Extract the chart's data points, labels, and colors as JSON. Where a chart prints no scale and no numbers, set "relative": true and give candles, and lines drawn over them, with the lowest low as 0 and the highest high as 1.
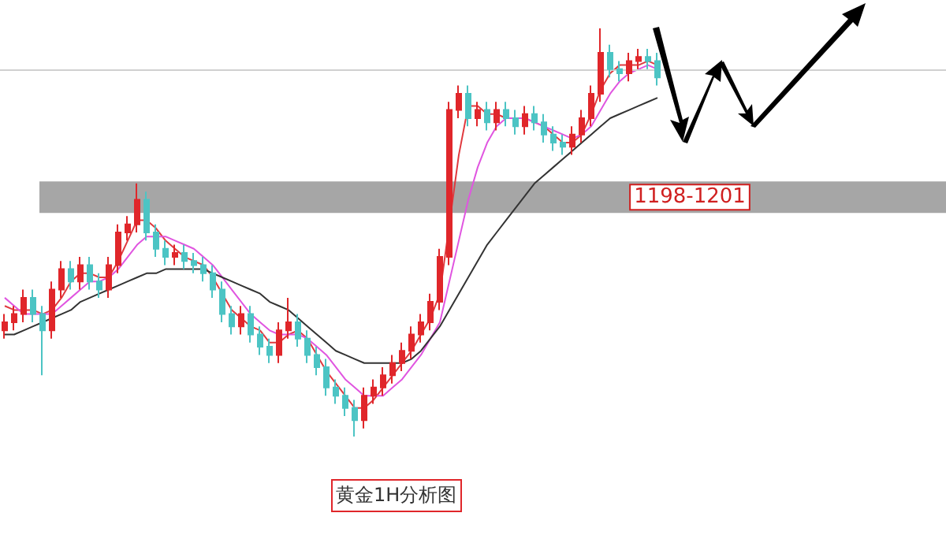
{
  "chart_data": {
    "type": "candlestick",
    "relative": true,
    "colors": [
      "#e0262a",
      "#e0262a",
      "#e0262a",
      "#4cc4c4",
      "#4cc4c4",
      "#e0262a",
      "#e0262a",
      "#4cc4c4",
      "#e0262a",
      "#4cc4c4",
      "#4cc4c4",
      "#e0262a",
      "#e0262a",
      "#e0262a",
      "#e0262a",
      "#4cc4c4",
      "#4cc4c4",
      "#4cc4c4",
      "#e0262a",
      "#4cc4c4",
      "#4cc4c4",
      "#4cc4c4",
      "#4cc4c4",
      "#4cc4c4",
      "#4cc4c4",
      "#e0262a",
      "#4cc4c4",
      "#4cc4c4",
      "#4cc4c4",
      "#e0262a",
      "#e0262a",
      "#4cc4c4",
      "#4cc4c4",
      "#4cc4c4",
      "#4cc4c4",
      "#4cc4c4",
      "#4cc4c4",
      "#4cc4c4",
      "#e0262a",
      "#e0262a",
      "#e0262a",
      "#e0262a",
      "#e0262a",
      "#e0262a",
      "#e0262a",
      "#e0262a",
      "#e0262a",
      "#e0262a",
      "#e0262a",
      "#4cc4c4",
      "#e0262a",
      "#4cc4c4",
      "#e0262a",
      "#4cc4c4",
      "#4cc4c4",
      "#e0262a",
      "#4cc4c4",
      "#4cc4c4",
      "#4cc4c4",
      "#4cc4c4",
      "#e0262a",
      "#e0262a",
      "#e0262a",
      "#e0262a",
      "#4cc4c4",
      "#4cc4c4",
      "#e0262a",
      "#e0262a",
      "#4cc4c4",
      "#4cc4c4"
    ],
    "categories": [
      null,
      null,
      null,
      null,
      null,
      null,
      null,
      null,
      null,
      null,
      null,
      null,
      null,
      null,
      null,
      null,
      null,
      null,
      null,
      null,
      null,
      null,
      null,
      null,
      null,
      null,
      null,
      null,
      null,
      null,
      null,
      null,
      null,
      null,
      null,
      null,
      null,
      null,
      null,
      null,
      null,
      null,
      null,
      null,
      null,
      null,
      null,
      null,
      null,
      null,
      null,
      null,
      null,
      null,
      null,
      null,
      null,
      null,
      null,
      null,
      null,
      null,
      null,
      null,
      null,
      null,
      null,
      null,
      null,
      null
    ],
    "ohlc": [
      [
        0.26,
        0.3,
        0.24,
        0.28
      ],
      [
        0.28,
        0.32,
        0.26,
        0.3
      ],
      [
        0.3,
        0.36,
        0.28,
        0.34
      ],
      [
        0.34,
        0.36,
        0.28,
        0.3
      ],
      [
        0.3,
        0.32,
        0.15,
        0.26
      ],
      [
        0.26,
        0.38,
        0.24,
        0.36
      ],
      [
        0.36,
        0.43,
        0.34,
        0.41
      ],
      [
        0.41,
        0.43,
        0.36,
        0.38
      ],
      [
        0.38,
        0.44,
        0.36,
        0.42
      ],
      [
        0.42,
        0.44,
        0.36,
        0.38
      ],
      [
        0.38,
        0.4,
        0.34,
        0.36
      ],
      [
        0.36,
        0.44,
        0.34,
        0.42
      ],
      [
        0.42,
        0.52,
        0.4,
        0.5
      ],
      [
        0.5,
        0.54,
        0.48,
        0.52
      ],
      [
        0.52,
        0.62,
        0.5,
        0.58
      ],
      [
        0.58,
        0.6,
        0.48,
        0.5
      ],
      [
        0.5,
        0.52,
        0.44,
        0.46
      ],
      [
        0.46,
        0.48,
        0.42,
        0.44
      ],
      [
        0.44,
        0.47,
        0.42,
        0.45
      ],
      [
        0.45,
        0.47,
        0.41,
        0.43
      ],
      [
        0.43,
        0.45,
        0.4,
        0.42
      ],
      [
        0.42,
        0.44,
        0.38,
        0.4
      ],
      [
        0.4,
        0.42,
        0.34,
        0.36
      ],
      [
        0.36,
        0.38,
        0.28,
        0.3
      ],
      [
        0.3,
        0.32,
        0.25,
        0.27
      ],
      [
        0.27,
        0.32,
        0.25,
        0.3
      ],
      [
        0.3,
        0.32,
        0.23,
        0.25
      ],
      [
        0.25,
        0.27,
        0.2,
        0.22
      ],
      [
        0.22,
        0.24,
        0.18,
        0.2
      ],
      [
        0.2,
        0.28,
        0.18,
        0.26
      ],
      [
        0.26,
        0.34,
        0.24,
        0.28
      ],
      [
        0.28,
        0.3,
        0.22,
        0.24
      ],
      [
        0.24,
        0.26,
        0.18,
        0.2
      ],
      [
        0.2,
        0.22,
        0.15,
        0.17
      ],
      [
        0.17,
        0.19,
        0.1,
        0.12
      ],
      [
        0.12,
        0.14,
        0.08,
        0.1
      ],
      [
        0.1,
        0.12,
        0.05,
        0.07
      ],
      [
        0.07,
        0.09,
        0,
        0.04
      ],
      [
        0.04,
        0.12,
        0.02,
        0.1
      ],
      [
        0.1,
        0.14,
        0.08,
        0.12
      ],
      [
        0.12,
        0.17,
        0.1,
        0.15
      ],
      [
        0.15,
        0.2,
        0.13,
        0.18
      ],
      [
        0.18,
        0.23,
        0.16,
        0.21
      ],
      [
        0.21,
        0.27,
        0.19,
        0.25
      ],
      [
        0.25,
        0.3,
        0.23,
        0.28
      ],
      [
        0.28,
        0.35,
        0.26,
        0.33
      ],
      [
        0.33,
        0.46,
        0.31,
        0.44
      ],
      [
        0.44,
        0.82,
        0.42,
        0.8
      ],
      [
        0.8,
        0.86,
        0.78,
        0.84
      ],
      [
        0.84,
        0.86,
        0.76,
        0.78
      ],
      [
        0.78,
        0.82,
        0.76,
        0.8
      ],
      [
        0.8,
        0.82,
        0.75,
        0.77
      ],
      [
        0.77,
        0.82,
        0.75,
        0.8
      ],
      [
        0.8,
        0.82,
        0.76,
        0.78
      ],
      [
        0.78,
        0.8,
        0.74,
        0.76
      ],
      [
        0.76,
        0.81,
        0.74,
        0.79
      ],
      [
        0.79,
        0.81,
        0.75,
        0.77
      ],
      [
        0.77,
        0.79,
        0.72,
        0.74
      ],
      [
        0.74,
        0.76,
        0.7,
        0.72
      ],
      [
        0.72,
        0.74,
        0.69,
        0.71
      ],
      [
        0.71,
        0.76,
        0.69,
        0.74
      ],
      [
        0.74,
        0.8,
        0.72,
        0.78
      ],
      [
        0.78,
        0.86,
        0.76,
        0.84
      ],
      [
        0.84,
        1,
        0.82,
        0.94
      ],
      [
        0.94,
        0.96,
        0.88,
        0.9
      ],
      [
        0.9,
        0.92,
        0.87,
        0.89
      ],
      [
        0.89,
        0.94,
        0.87,
        0.92
      ],
      [
        0.92,
        0.95,
        0.9,
        0.93
      ],
      [
        0.93,
        0.95,
        0.9,
        0.92
      ],
      [
        0.92,
        0.94,
        0.86,
        0.88
      ]
    ],
    "series": [
      {
        "type": "line",
        "color": "#e0393e",
        "values": [
          0.32,
          0.31,
          0.31,
          0.31,
          0.3,
          0.31,
          0.34,
          0.38,
          0.4,
          0.4,
          0.39,
          0.39,
          0.43,
          0.48,
          0.53,
          0.53,
          0.51,
          0.48,
          0.46,
          0.44,
          0.43,
          0.42,
          0.39,
          0.35,
          0.31,
          0.29,
          0.27,
          0.26,
          0.23,
          0.23,
          0.25,
          0.26,
          0.24,
          0.2,
          0.16,
          0.13,
          0.1,
          0.07,
          0.07,
          0.09,
          0.12,
          0.15,
          0.18,
          0.21,
          0.25,
          0.29,
          0.35,
          0.52,
          0.69,
          0.81,
          0.81,
          0.79,
          0.79,
          0.78,
          0.78,
          0.78,
          0.77,
          0.76,
          0.74,
          0.72,
          0.72,
          0.74,
          0.79,
          0.85,
          0.89,
          0.91,
          0.91,
          0.91,
          0.92,
          0.91
        ]
      },
      {
        "type": "line",
        "color": "#e055e0",
        "values": [
          0.34,
          0.32,
          0.3,
          0.3,
          0.3,
          0.3,
          0.32,
          0.34,
          0.36,
          0.38,
          0.38,
          0.39,
          0.41,
          0.44,
          0.47,
          0.49,
          0.49,
          0.49,
          0.48,
          0.47,
          0.46,
          0.44,
          0.42,
          0.39,
          0.36,
          0.33,
          0.3,
          0.28,
          0.26,
          0.25,
          0.25,
          0.25,
          0.24,
          0.22,
          0.2,
          0.17,
          0.14,
          0.12,
          0.1,
          0.1,
          0.1,
          0.12,
          0.14,
          0.17,
          0.2,
          0.24,
          0.28,
          0.38,
          0.48,
          0.58,
          0.66,
          0.72,
          0.76,
          0.78,
          0.78,
          0.78,
          0.77,
          0.76,
          0.75,
          0.74,
          0.73,
          0.74,
          0.76,
          0.8,
          0.84,
          0.87,
          0.89,
          0.9,
          0.91,
          0.9
        ]
      },
      {
        "type": "line",
        "color": "#333333",
        "values": [
          0.25,
          0.25,
          0.26,
          0.27,
          0.28,
          0.29,
          0.3,
          0.31,
          0.33,
          0.34,
          0.35,
          0.36,
          0.37,
          0.38,
          0.39,
          0.4,
          0.4,
          0.41,
          0.41,
          0.41,
          0.41,
          0.41,
          0.4,
          0.39,
          0.38,
          0.37,
          0.36,
          0.35,
          0.33,
          0.32,
          0.31,
          0.29,
          0.27,
          0.25,
          0.23,
          0.21,
          0.2,
          0.19,
          0.18,
          0.18,
          0.18,
          0.18,
          0.18,
          0.19,
          0.21,
          0.24,
          0.27,
          0.31,
          0.35,
          0.39,
          0.43,
          0.47,
          0.5,
          0.53,
          0.56,
          0.59,
          0.62,
          0.64,
          0.66,
          0.68,
          0.7,
          0.72,
          0.74,
          0.76,
          0.78,
          0.79,
          0.8,
          0.81,
          0.82,
          0.83
        ]
      }
    ],
    "bands": [
      {
        "axis": "y",
        "from": 0.548,
        "to": 0.625,
        "label": "1198-1201",
        "color": "#a6a6a6"
      }
    ],
    "ref_lines": [
      {
        "axis": "y",
        "value": 0.896,
        "color": "#d0d0d0"
      }
    ],
    "annotations": [
      "黄金1H分析图"
    ],
    "line_style": "solid",
    "grid": false
  }
}
